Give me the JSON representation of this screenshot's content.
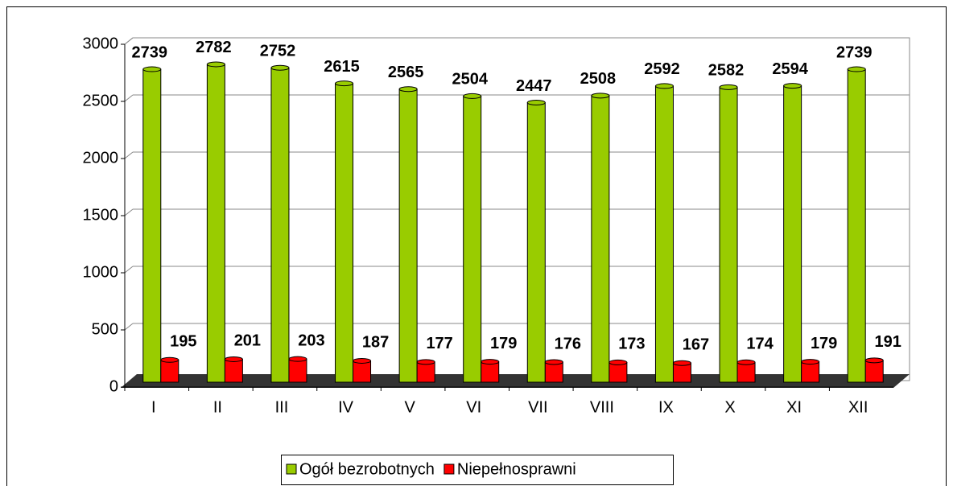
{
  "chart_data": {
    "type": "bar",
    "categories": [
      "I",
      "II",
      "III",
      "IV",
      "V",
      "VI",
      "VII",
      "VIII",
      "IX",
      "X",
      "XI",
      "XII"
    ],
    "series": [
      {
        "name": "Ogół bezrobotnych",
        "color": "#99cc00",
        "values": [
          2739,
          2782,
          2752,
          2615,
          2565,
          2504,
          2447,
          2508,
          2592,
          2582,
          2594,
          2739
        ]
      },
      {
        "name": "Niepełnosprawni",
        "color": "#ff0000",
        "values": [
          195,
          201,
          203,
          187,
          177,
          179,
          176,
          173,
          167,
          174,
          179,
          191
        ]
      }
    ],
    "ylim": [
      0,
      3000
    ],
    "yticks": [
      0,
      500,
      1000,
      1500,
      2000,
      2500,
      3000
    ],
    "grid": true,
    "legend": "bottom"
  }
}
